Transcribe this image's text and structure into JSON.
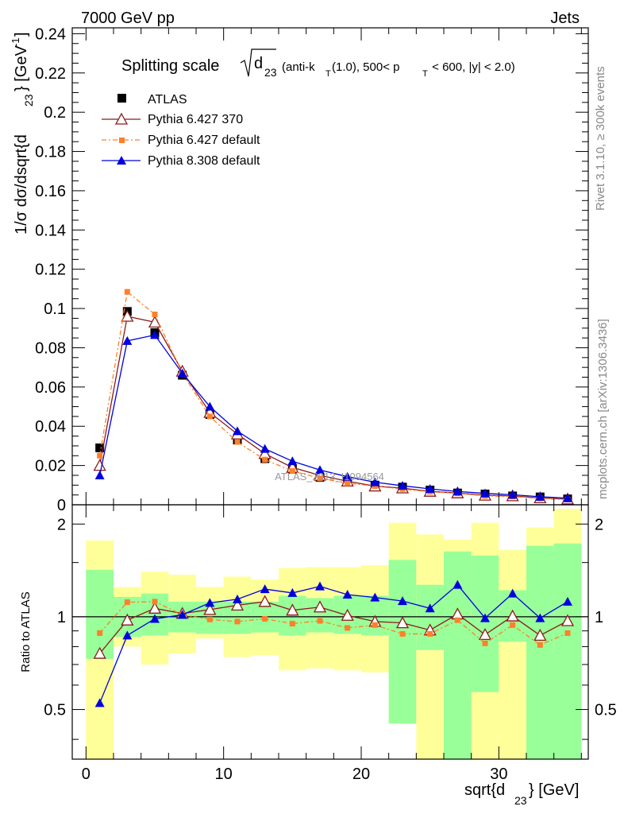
{
  "header": {
    "energy_label": "7000 GeV pp",
    "process_label": "Jets",
    "rivet_label": "Rivet 3.1.10, ≥ 300k events",
    "mcplots_label": "mcplots.cern.ch [arXiv:1306.3436]",
    "watermark": "ATLAS_2013_I1094564"
  },
  "chart_data": [
    {
      "type": "line",
      "title": "Splitting scale √(d23) (anti-kT(1.0), 500< pT < 600, |y| < 2.0)",
      "title_parts": {
        "main": "Splitting scale",
        "var": "d",
        "var_sub": "23",
        "paren_a": "(anti-k",
        "kt_sub": "T",
        "paren_b": "(1.0), 500< p",
        "pt_sub": "T",
        "paren_c": " < 600, |y| < 2.0)"
      },
      "xlabel": "sqrt{d23} [GeV]",
      "xlabel_parts": {
        "a": "sqrt{d",
        "sub": "23",
        "b": "} [GeV]"
      },
      "ylabel": "1/σ dσ/dsqrt{d23} [GeV^-1]",
      "ylabel_parts": {
        "a": "1/σ dσ/dsqrt{d",
        "sub": "23",
        "b": "} [GeV",
        "sup": "-1",
        "c": "]"
      },
      "xlim": [
        -1,
        36.5
      ],
      "ylim": [
        0,
        0.243
      ],
      "x_ticks": [
        "0",
        "10",
        "20",
        "30"
      ],
      "y_ticks": [
        "0",
        "0.02",
        "0.04",
        "0.06",
        "0.08",
        "0.1",
        "0.12",
        "0.14",
        "0.16",
        "0.18",
        "0.2",
        "0.22",
        "0.24"
      ],
      "legend_position": "top-left",
      "x": [
        1,
        3,
        5,
        7,
        9,
        11,
        13,
        15,
        17,
        19,
        21,
        23,
        25,
        27,
        29,
        31,
        33,
        35
      ],
      "series": [
        {
          "name": "ATLAS",
          "color": "#000000",
          "marker": "square",
          "values": [
            0.029,
            0.0985,
            0.0877,
            0.066,
            0.046,
            0.033,
            0.0235,
            0.018,
            0.014,
            0.012,
            0.01,
            0.009,
            0.0075,
            0.006,
            0.0055,
            0.0045,
            0.004,
            0.003
          ]
        },
        {
          "name": "Pythia 6.427 370",
          "color": "#8b1a1a",
          "marker": "open-triangle",
          "line": "solid",
          "values": [
            0.02,
            0.096,
            0.093,
            0.068,
            0.047,
            0.036,
            0.026,
            0.019,
            0.015,
            0.012,
            0.0095,
            0.0085,
            0.0068,
            0.006,
            0.0048,
            0.0045,
            0.0035,
            0.0029
          ]
        },
        {
          "name": "Pythia 6.427 default",
          "color": "#ff7f2a",
          "marker": "small-square",
          "line": "dash-dot",
          "values": [
            0.025,
            0.1085,
            0.097,
            0.067,
            0.045,
            0.032,
            0.023,
            0.0172,
            0.0135,
            0.011,
            0.0095,
            0.008,
            0.0066,
            0.0058,
            0.0045,
            0.0042,
            0.0032,
            0.0026
          ]
        },
        {
          "name": "Pythia 8.308 default",
          "color": "#0000dd",
          "marker": "triangle",
          "line": "solid",
          "values": [
            0.015,
            0.0835,
            0.0865,
            0.067,
            0.05,
            0.0375,
            0.0285,
            0.0222,
            0.0177,
            0.0143,
            0.0115,
            0.0097,
            0.0081,
            0.0068,
            0.0058,
            0.0051,
            0.0041,
            0.0034
          ]
        }
      ]
    },
    {
      "type": "line",
      "ylabel": "Ratio to ATLAS",
      "ylim": [
        0.345,
        2.31
      ],
      "y_ticks": [
        "0.5",
        "1",
        "2"
      ],
      "reference": 1,
      "bins": [
        [
          0,
          2
        ],
        [
          2,
          4
        ],
        [
          4,
          6
        ],
        [
          6,
          8
        ],
        [
          8,
          10
        ],
        [
          10,
          12
        ],
        [
          12,
          14
        ],
        [
          14,
          16
        ],
        [
          16,
          18
        ],
        [
          18,
          20
        ],
        [
          20,
          22
        ],
        [
          22,
          24
        ],
        [
          24,
          26
        ],
        [
          26,
          28
        ],
        [
          28,
          30
        ],
        [
          30,
          32
        ],
        [
          32,
          34
        ],
        [
          34,
          36
        ]
      ],
      "band_outer": [
        [
          0.345,
          1.77
        ],
        [
          0.8,
          1.25
        ],
        [
          0.7,
          1.4
        ],
        [
          0.76,
          1.37
        ],
        [
          0.85,
          1.25
        ],
        [
          0.74,
          1.35
        ],
        [
          0.75,
          1.32
        ],
        [
          0.67,
          1.44
        ],
        [
          0.68,
          1.45
        ],
        [
          0.67,
          1.45
        ],
        [
          0.66,
          1.47
        ],
        [
          0.45,
          2.02
        ],
        [
          0.345,
          1.85
        ],
        [
          0.41,
          1.78
        ],
        [
          0.345,
          2.02
        ],
        [
          0.345,
          1.65
        ],
        [
          0.53,
          1.95
        ],
        [
          0.345,
          2.24
        ]
      ],
      "band_inner": [
        [
          0.73,
          1.42
        ],
        [
          0.86,
          1.16
        ],
        [
          0.87,
          1.19
        ],
        [
          0.89,
          1.12
        ],
        [
          0.88,
          1.12
        ],
        [
          0.88,
          1.12
        ],
        [
          0.89,
          1.12
        ],
        [
          0.87,
          1.17
        ],
        [
          0.89,
          1.15
        ],
        [
          0.88,
          1.17
        ],
        [
          0.87,
          1.17
        ],
        [
          0.45,
          1.53
        ],
        [
          0.78,
          1.27
        ],
        [
          0.345,
          1.63
        ],
        [
          0.57,
          1.58
        ],
        [
          0.83,
          1.22
        ],
        [
          0.345,
          1.7
        ],
        [
          0.345,
          1.73
        ]
      ],
      "series": [
        {
          "name": "Pythia 6.427 370",
          "values": [
            0.76,
            0.975,
            1.065,
            1.025,
            1.055,
            1.09,
            1.12,
            1.05,
            1.075,
            1.01,
            0.965,
            0.955,
            0.905,
            1.02,
            0.875,
            1.005,
            0.87,
            0.97
          ]
        },
        {
          "name": "Pythia 6.427 default",
          "values": [
            0.885,
            1.115,
            1.12,
            1.015,
            0.98,
            0.965,
            0.985,
            0.95,
            0.97,
            0.92,
            0.94,
            0.88,
            0.88,
            0.975,
            0.82,
            0.94,
            0.81,
            0.885
          ]
        },
        {
          "name": "Pythia 8.308 default",
          "values": [
            0.525,
            0.87,
            0.985,
            1.015,
            1.11,
            1.14,
            1.23,
            1.195,
            1.255,
            1.18,
            1.155,
            1.125,
            1.065,
            1.27,
            0.99,
            1.19,
            0.99,
            1.12
          ]
        }
      ]
    }
  ]
}
